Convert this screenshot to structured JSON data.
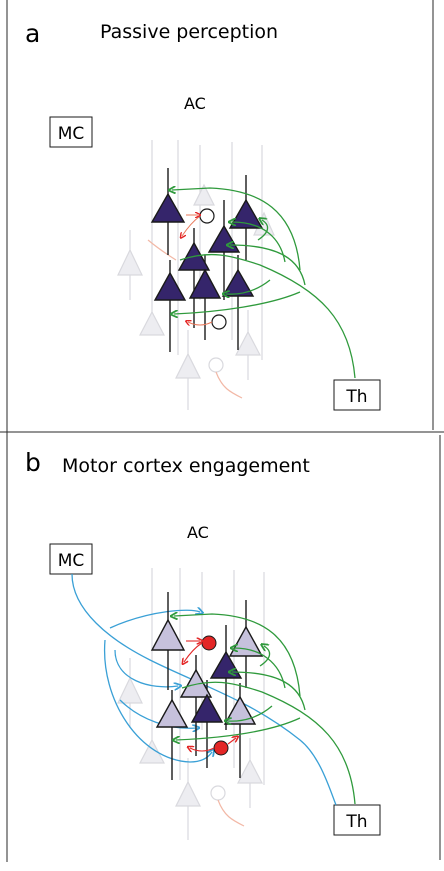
{
  "panels": [
    {
      "letter": "a",
      "title": "Passive perception",
      "area_label": "AC",
      "mc_label": "MC",
      "th_label": "Th"
    },
    {
      "letter": "b",
      "title": "Motor cortex engagement",
      "area_label": "AC",
      "mc_label": "MC",
      "th_label": "Th"
    }
  ],
  "colors": {
    "excitatory_active": "#35256b",
    "excitatory_modulated": "#c6c1dc",
    "background_neuron": "#e9e9ee",
    "inhibitory_active": "#e32626",
    "thalamic_axon": "#2f9a3c",
    "motor_axon": "#3aa0d6",
    "local_inhibitory_axon": "#e9785a"
  }
}
